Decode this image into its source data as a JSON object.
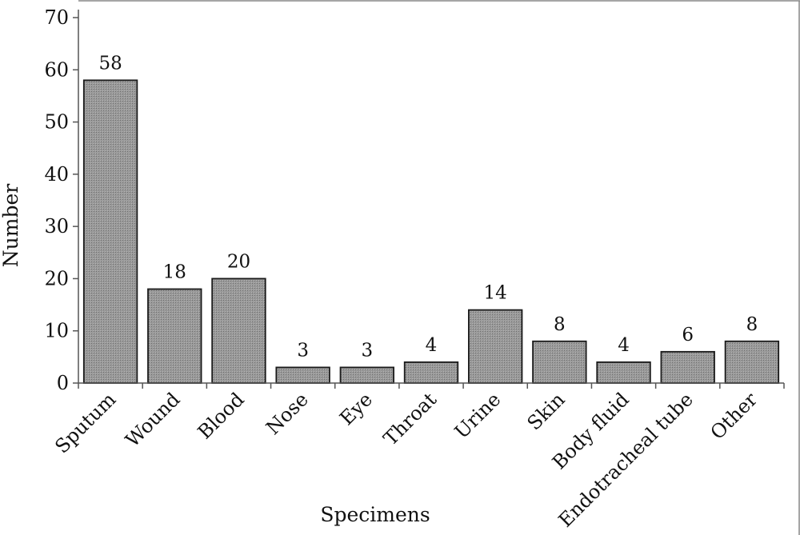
{
  "chart_data": {
    "type": "bar",
    "title": "",
    "xlabel": "Specimens",
    "ylabel": "Number",
    "ylim": [
      0,
      70
    ],
    "yticks": [
      0,
      10,
      20,
      30,
      40,
      50,
      60,
      70
    ],
    "categories": [
      "Sputum",
      "Wound",
      "Blood",
      "Nose",
      "Eye",
      "Throat",
      "Urine",
      "Skin",
      "Body fluid",
      "Endotracheal tube",
      "Other"
    ],
    "values": [
      58,
      18,
      20,
      3,
      3,
      4,
      14,
      8,
      4,
      6,
      8
    ],
    "grid": false,
    "legend": "none",
    "bar_color": "#8c8c8c",
    "bar_edge_color": "#1a1a1a"
  }
}
